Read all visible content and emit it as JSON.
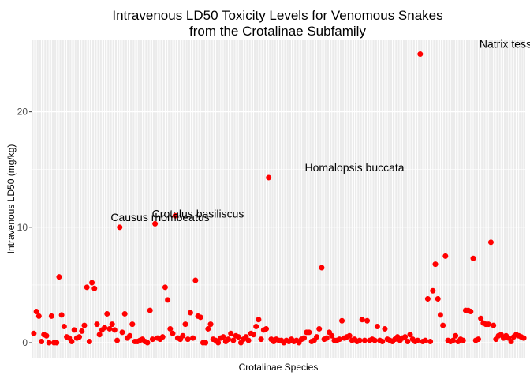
{
  "chart_data": {
    "type": "scatter",
    "title_line1": "Intravenous LD50 Toxicity Levels for Venomous Snakes",
    "title_line2": "from the Crotalinae Subfamily",
    "xlabel": "Crotalinae Species",
    "ylabel": "Intravenous LD50 (mg/kg)",
    "ylim": [
      -1.3,
      26.2
    ],
    "yticks": [
      "0",
      "10",
      "20"
    ],
    "grid": true,
    "point_color": "#ff0000",
    "panel_color": "#ebebeb",
    "annotations": [
      {
        "label": "Natrix tessellata",
        "x": 192,
        "y": 25.0
      },
      {
        "label": "Homalopsis buccata",
        "x": 127,
        "y": 14.3
      },
      {
        "label": "Crotalus basiliscus",
        "x": 65,
        "y": 10.3
      },
      {
        "label": "Causus rhombeatus",
        "x": 50,
        "y": 10.0
      }
    ],
    "values": [
      0.8,
      2.7,
      2.3,
      0.1,
      0.7,
      0.6,
      0.0,
      2.3,
      0.0,
      0.0,
      5.7,
      2.4,
      1.4,
      0.5,
      0.4,
      0.1,
      1.1,
      0.4,
      0.5,
      1.0,
      1.5,
      4.8,
      0.1,
      5.2,
      4.7,
      1.6,
      0.7,
      1.1,
      1.3,
      2.5,
      1.2,
      1.6,
      1.1,
      0.2,
      10.0,
      0.9,
      2.5,
      0.4,
      0.6,
      1.6,
      0.1,
      0.1,
      0.2,
      0.3,
      0.1,
      0.0,
      2.8,
      0.3,
      10.3,
      0.4,
      0.3,
      0.5,
      4.8,
      3.7,
      1.2,
      0.8,
      11.0,
      0.4,
      0.3,
      0.6,
      1.6,
      0.3,
      2.6,
      0.4,
      5.4,
      2.3,
      2.2,
      0.0,
      0.0,
      1.2,
      1.6,
      0.3,
      0.2,
      0.0,
      0.4,
      0.5,
      0.1,
      0.3,
      0.8,
      0.2,
      0.6,
      0.5,
      0.0,
      0.3,
      0.5,
      0.2,
      0.8,
      0.7,
      1.4,
      2.0,
      0.3,
      1.1,
      1.2,
      14.3,
      0.3,
      0.1,
      0.3,
      0.2,
      0.2,
      0.0,
      0.2,
      0.1,
      0.3,
      0.1,
      0.2,
      0.0,
      0.3,
      0.4,
      0.9,
      0.9,
      0.1,
      0.2,
      0.5,
      1.2,
      6.5,
      0.3,
      0.4,
      0.9,
      0.6,
      0.2,
      0.2,
      0.3,
      1.9,
      0.4,
      0.5,
      0.6,
      0.2,
      0.3,
      0.1,
      0.2,
      2.0,
      0.2,
      1.9,
      0.2,
      0.3,
      0.2,
      1.4,
      0.2,
      0.1,
      1.2,
      0.3,
      0.2,
      0.1,
      0.3,
      0.5,
      0.2,
      0.4,
      0.5,
      0.1,
      0.7,
      0.3,
      0.1,
      0.2,
      25.0,
      0.1,
      0.2,
      3.8,
      0.1,
      4.5,
      6.8,
      3.8,
      2.4,
      1.5,
      7.5,
      0.2,
      0.1,
      0.2,
      0.6,
      0.1,
      0.3,
      0.2,
      2.8,
      2.8,
      2.7,
      7.3,
      0.2,
      0.3,
      2.1,
      1.7,
      1.6,
      1.6,
      8.7,
      1.5,
      0.3,
      0.6,
      0.7,
      0.4,
      0.6,
      0.4,
      0.1,
      0.5,
      0.7,
      0.6,
      0.5,
      0.4
    ]
  }
}
